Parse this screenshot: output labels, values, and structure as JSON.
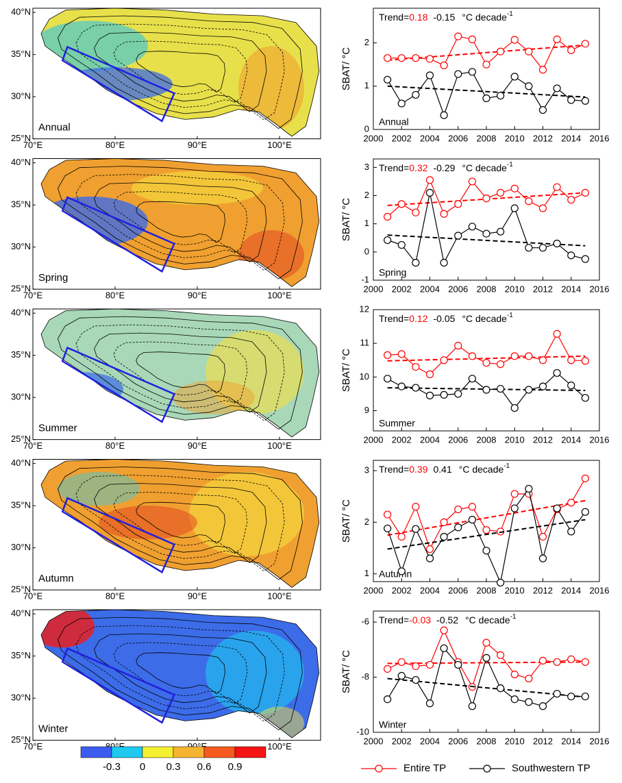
{
  "chart_data": [
    {
      "type": "map",
      "season": "Annual",
      "xlim": [
        70,
        105
      ],
      "ylim": [
        25,
        40.5
      ],
      "xticks": [
        {
          "value": 70,
          "label": "70°E"
        },
        {
          "value": 80,
          "label": "80°E"
        },
        {
          "value": 90,
          "label": "90°E"
        },
        {
          "value": 100,
          "label": "100°E"
        }
      ],
      "yticks": [
        {
          "value": 25,
          "label": "25°N"
        },
        {
          "value": 30,
          "label": "30°N"
        },
        {
          "value": 35,
          "label": "35°N"
        },
        {
          "value": 40,
          "label": "40°N"
        }
      ]
    },
    {
      "type": "map",
      "season": "Spring",
      "xlim": [
        70,
        105
      ],
      "ylim": [
        25,
        40.5
      ],
      "xticks": [
        {
          "value": 70,
          "label": "70°E"
        },
        {
          "value": 80,
          "label": "80°E"
        },
        {
          "value": 90,
          "label": "90°E"
        },
        {
          "value": 100,
          "label": "100°E"
        }
      ],
      "yticks": [
        {
          "value": 25,
          "label": "25°N"
        },
        {
          "value": 30,
          "label": "30°N"
        },
        {
          "value": 35,
          "label": "35°N"
        },
        {
          "value": 40,
          "label": "40°N"
        }
      ]
    },
    {
      "type": "map",
      "season": "Summer",
      "xlim": [
        70,
        105
      ],
      "ylim": [
        25,
        40.5
      ],
      "xticks": [
        {
          "value": 70,
          "label": "70°E"
        },
        {
          "value": 80,
          "label": "80°E"
        },
        {
          "value": 90,
          "label": "90°E"
        },
        {
          "value": 100,
          "label": "100°E"
        }
      ],
      "yticks": [
        {
          "value": 25,
          "label": "25°N"
        },
        {
          "value": 30,
          "label": "30°N"
        },
        {
          "value": 35,
          "label": "35°N"
        },
        {
          "value": 40,
          "label": "40°N"
        }
      ]
    },
    {
      "type": "map",
      "season": "Autumn",
      "xlim": [
        70,
        105
      ],
      "ylim": [
        25,
        40.5
      ],
      "xticks": [
        {
          "value": 70,
          "label": "70°E"
        },
        {
          "value": 80,
          "label": "80°E"
        },
        {
          "value": 90,
          "label": "90°E"
        },
        {
          "value": 100,
          "label": "100°E"
        }
      ],
      "yticks": [
        {
          "value": 25,
          "label": "25°N"
        },
        {
          "value": 30,
          "label": "30°N"
        },
        {
          "value": 35,
          "label": "35°N"
        },
        {
          "value": 40,
          "label": "40°N"
        }
      ]
    },
    {
      "type": "map",
      "season": "Winter",
      "xlim": [
        70,
        105
      ],
      "ylim": [
        25,
        40.5
      ],
      "xticks": [
        {
          "value": 70,
          "label": "70°E"
        },
        {
          "value": 80,
          "label": "80°E"
        },
        {
          "value": 90,
          "label": "90°E"
        },
        {
          "value": 100,
          "label": "100°E"
        }
      ],
      "yticks": [
        {
          "value": 25,
          "label": "25°N"
        },
        {
          "value": 30,
          "label": "30°N"
        },
        {
          "value": 35,
          "label": "35°N"
        },
        {
          "value": 40,
          "label": "40°N"
        }
      ]
    },
    {
      "type": "line",
      "season": "Annual",
      "y_label": "SBAT/ °C",
      "trend_label": "Trend=",
      "trend_entire": 0.18,
      "trend_sw": -0.15,
      "trend_unit": "°C decade",
      "trend_unit_exp": "-1",
      "x": [
        2001,
        2002,
        2003,
        2004,
        2005,
        2006,
        2007,
        2008,
        2009,
        2010,
        2011,
        2012,
        2013,
        2014,
        2015
      ],
      "xlim": [
        2000,
        2016
      ],
      "xticks": [
        2000,
        2002,
        2004,
        2006,
        2008,
        2010,
        2012,
        2014,
        2016
      ],
      "ylim": [
        0,
        2.8
      ],
      "yticks": [
        0,
        1,
        2
      ],
      "series": [
        {
          "name": "Entire TP",
          "color": "#ff0000",
          "values": [
            1.65,
            1.65,
            1.65,
            1.63,
            1.48,
            2.15,
            2.08,
            1.5,
            1.8,
            2.07,
            1.8,
            1.38,
            2.08,
            1.83,
            1.98
          ],
          "fit": [
            1.6,
            1.95
          ]
        },
        {
          "name": "Southwestern TP",
          "color": "#000000",
          "values": [
            1.15,
            0.6,
            0.8,
            1.25,
            0.33,
            1.28,
            1.33,
            0.72,
            0.78,
            1.22,
            1.0,
            0.45,
            0.95,
            0.68,
            0.66
          ],
          "fit": [
            1.0,
            0.75
          ]
        }
      ]
    },
    {
      "type": "line",
      "season": "Spring",
      "y_label": "SBAT/ °C",
      "trend_label": "Trend=",
      "trend_entire": 0.32,
      "trend_sw": -0.29,
      "trend_unit": "°C decade",
      "trend_unit_exp": "-1",
      "x": [
        2001,
        2002,
        2003,
        2004,
        2005,
        2006,
        2007,
        2008,
        2009,
        2010,
        2011,
        2012,
        2013,
        2014,
        2015
      ],
      "xlim": [
        2000,
        2016
      ],
      "xticks": [
        2000,
        2002,
        2004,
        2006,
        2008,
        2010,
        2012,
        2014,
        2016
      ],
      "ylim": [
        -1,
        3.3
      ],
      "yticks": [
        -1,
        0,
        1,
        2,
        3
      ],
      "series": [
        {
          "name": "Entire TP",
          "color": "#ff0000",
          "values": [
            1.25,
            1.7,
            1.4,
            2.55,
            1.35,
            1.7,
            2.5,
            1.9,
            2.1,
            2.25,
            1.8,
            1.55,
            2.3,
            1.85,
            2.1
          ],
          "fit": [
            1.65,
            2.1
          ]
        },
        {
          "name": "Southwestern TP",
          "color": "#000000",
          "values": [
            0.42,
            0.25,
            -0.38,
            2.1,
            -0.38,
            0.58,
            0.9,
            0.65,
            0.72,
            1.55,
            0.15,
            0.15,
            0.3,
            -0.12,
            -0.25
          ],
          "fit": [
            0.6,
            0.22
          ]
        }
      ]
    },
    {
      "type": "line",
      "season": "Summer",
      "y_label": "SBAT/ °C",
      "trend_label": "Trend=",
      "trend_entire": 0.12,
      "trend_sw": -0.05,
      "trend_unit": "°C decade",
      "trend_unit_exp": "-1",
      "x": [
        2001,
        2002,
        2003,
        2004,
        2005,
        2006,
        2007,
        2008,
        2009,
        2010,
        2011,
        2012,
        2013,
        2014,
        2015
      ],
      "xlim": [
        2000,
        2016
      ],
      "xticks": [
        2000,
        2002,
        2004,
        2006,
        2008,
        2010,
        2012,
        2014,
        2016
      ],
      "ylim": [
        8.4,
        12
      ],
      "yticks": [
        9,
        10,
        11,
        12
      ],
      "series": [
        {
          "name": "Entire TP",
          "color": "#ff0000",
          "values": [
            10.65,
            10.68,
            10.3,
            10.08,
            10.5,
            10.93,
            10.62,
            10.42,
            10.38,
            10.62,
            10.62,
            10.5,
            11.28,
            10.5,
            10.48
          ],
          "fit": [
            10.48,
            10.62
          ]
        },
        {
          "name": "Southwestern TP",
          "color": "#000000",
          "values": [
            9.95,
            9.72,
            9.68,
            9.45,
            9.47,
            9.5,
            9.95,
            9.62,
            9.65,
            9.08,
            9.62,
            9.72,
            10.12,
            9.75,
            9.38
          ],
          "fit": [
            9.68,
            9.6
          ]
        }
      ]
    },
    {
      "type": "line",
      "season": "Autumn",
      "y_label": "SBAT/ °C",
      "trend_label": "Trend=",
      "trend_entire": 0.39,
      "trend_sw": 0.41,
      "trend_unit": "°C decade",
      "trend_unit_exp": "-1",
      "x": [
        2001,
        2002,
        2003,
        2004,
        2005,
        2006,
        2007,
        2008,
        2009,
        2010,
        2011,
        2012,
        2013,
        2014,
        2015
      ],
      "xlim": [
        2000,
        2016
      ],
      "xticks": [
        2000,
        2002,
        2004,
        2006,
        2008,
        2010,
        2012,
        2014,
        2016
      ],
      "ylim": [
        0.85,
        3.2
      ],
      "yticks": [
        1,
        2,
        3
      ],
      "series": [
        {
          "name": "Entire TP",
          "color": "#ff0000",
          "values": [
            2.15,
            1.72,
            2.3,
            1.48,
            2.0,
            2.25,
            2.3,
            1.85,
            1.82,
            2.55,
            2.55,
            1.72,
            2.25,
            2.38,
            2.85
          ],
          "fit": [
            1.75,
            2.42
          ]
        },
        {
          "name": "Southwestern TP",
          "color": "#000000",
          "values": [
            1.88,
            1.05,
            1.87,
            1.3,
            1.72,
            1.9,
            2.05,
            1.45,
            0.83,
            2.27,
            2.65,
            1.3,
            2.27,
            1.82,
            2.2
          ],
          "fit": [
            1.48,
            2.05
          ]
        }
      ]
    },
    {
      "type": "line",
      "season": "Winter",
      "y_label": "SBAT/ °C",
      "trend_label": "Trend=",
      "trend_entire": -0.03,
      "trend_sw": -0.52,
      "trend_unit": "°C decade",
      "trend_unit_exp": "-1",
      "x": [
        2001,
        2002,
        2003,
        2004,
        2005,
        2006,
        2007,
        2008,
        2009,
        2010,
        2011,
        2012,
        2013,
        2014,
        2015
      ],
      "xlim": [
        2000,
        2016
      ],
      "xticks": [
        2000,
        2002,
        2004,
        2006,
        2008,
        2010,
        2012,
        2014,
        2016
      ],
      "ylim": [
        -10,
        -5.6
      ],
      "yticks": [
        -10,
        -8,
        -6
      ],
      "series": [
        {
          "name": "Entire TP",
          "color": "#ff0000",
          "values": [
            -7.7,
            -7.45,
            -7.6,
            -7.55,
            -6.3,
            -7.45,
            -8.35,
            -6.75,
            -7.2,
            -7.9,
            -8.05,
            -7.4,
            -7.45,
            -7.35,
            -7.45
          ],
          "fit": [
            -7.5,
            -7.45
          ]
        },
        {
          "name": "Southwestern TP",
          "color": "#000000",
          "values": [
            -8.8,
            -7.95,
            -8.1,
            -8.95,
            -6.95,
            -7.55,
            -9.05,
            -7.3,
            -8.4,
            -8.8,
            -8.9,
            -9.05,
            -8.6,
            -8.7,
            -8.7
          ],
          "fit": [
            -8.05,
            -8.72
          ]
        }
      ]
    }
  ],
  "colorbar": {
    "lim": [
      -0.6,
      1.2
    ],
    "ticks": [
      -0.3,
      0,
      0.3,
      0.6,
      0.9
    ],
    "colors": [
      "#3c5cf0",
      "#1ec8f0",
      "#f5f032",
      "#f5b432",
      "#f55a1e",
      "#f51414"
    ]
  }
}
